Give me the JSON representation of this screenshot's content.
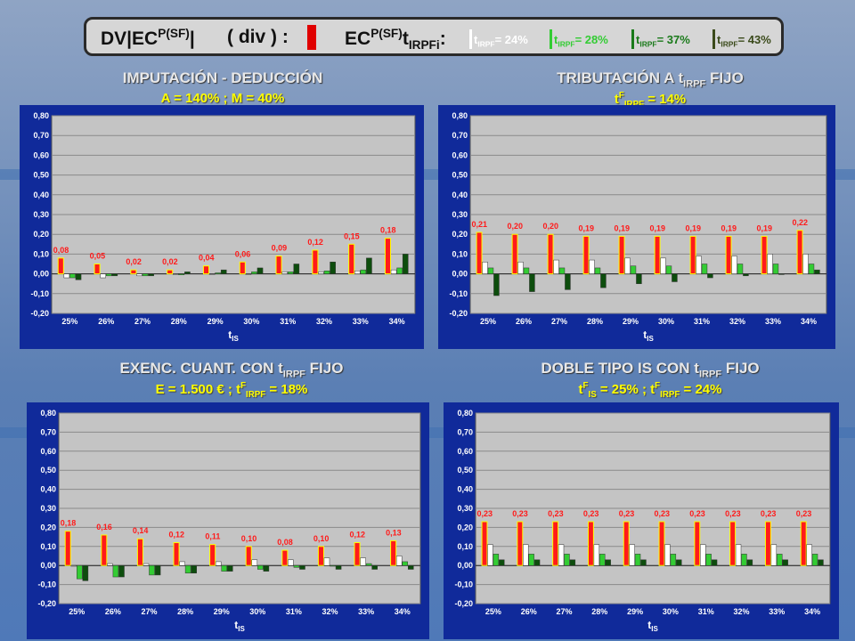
{
  "banner": {
    "left_text": "DV|EC",
    "left_sup": "P(SF)",
    "left_end": "|",
    "div_text": "( div ) :",
    "ec_text": "EC",
    "ec_sup": "P(SF)",
    "ec_t": "t",
    "ec_sub": "IRPFi",
    "ec_colon": ":",
    "legend": [
      {
        "t": "t",
        "sub": "IRPF",
        "val": "= 24%",
        "color": "#ffffff"
      },
      {
        "t": "t",
        "sub": "IRPF",
        "val": "= 28%",
        "color": "#33cc33"
      },
      {
        "t": "t",
        "sub": "IRPF",
        "val": "= 37%",
        "color": "#1a7a1a"
      },
      {
        "t": "t",
        "sub": "IRPF",
        "val": "= 43%",
        "color": "#3a4a1a"
      }
    ]
  },
  "charts": [
    {
      "title": "IMPUTACIÓN - DEDUCCIÓN",
      "subtitle": "A = 140%   ;   M = 40%",
      "xlabel_t": "t",
      "xlabel_sub": "IS",
      "chart_data": {
        "type": "bar",
        "categories": [
          "25%",
          "26%",
          "27%",
          "28%",
          "29%",
          "30%",
          "31%",
          "32%",
          "33%",
          "34%"
        ],
        "ylim": [
          -0.2,
          0.8
        ],
        "yticks": [
          "0,80",
          "0,70",
          "0,60",
          "0,50",
          "0,40",
          "0,30",
          "0,20",
          "0,10",
          "0,00",
          "-0,10",
          "-0,20"
        ],
        "data_labels": [
          "0,08",
          "0,05",
          "0,02",
          "0,02",
          "0,04",
          "0,06",
          "0,09",
          "0,12",
          "0,15",
          "0,18"
        ],
        "series": [
          {
            "values": [
              0.08,
              0.05,
              0.02,
              0.02,
              0.04,
              0.06,
              0.09,
              0.12,
              0.15,
              0.18
            ],
            "color": "#ff1a1a"
          },
          {
            "values": [
              -0.02,
              -0.02,
              -0.01,
              0.0,
              0.0,
              0.0,
              0.01,
              0.01,
              0.015,
              0.02
            ],
            "color": "#ffffff"
          },
          {
            "values": [
              -0.02,
              -0.01,
              -0.01,
              -0.005,
              0.005,
              0.01,
              0.01,
              0.015,
              0.02,
              0.03
            ],
            "color": "#33cc33"
          },
          {
            "values": [
              -0.03,
              -0.01,
              -0.01,
              0.01,
              0.02,
              0.03,
              0.05,
              0.06,
              0.08,
              0.1
            ],
            "color": "#0d4d0d"
          }
        ]
      }
    },
    {
      "title": "TRIBUTACIÓN A t",
      "title_sub": "IRPF",
      "title_end": " FIJO",
      "subtitle": "t",
      "subtitle_sup": "F",
      "subtitle_sub": "IRPF",
      "subtitle_end": " = 14%",
      "xlabel_t": "t",
      "xlabel_sub": "IS",
      "chart_data": {
        "type": "bar",
        "categories": [
          "25%",
          "26%",
          "27%",
          "28%",
          "29%",
          "30%",
          "31%",
          "32%",
          "33%",
          "34%"
        ],
        "ylim": [
          -0.2,
          0.8
        ],
        "yticks": [
          "0,80",
          "0,70",
          "0,60",
          "0,50",
          "0,40",
          "0,30",
          "0,20",
          "0,10",
          "0,00",
          "-0,10",
          "-0,20"
        ],
        "data_labels": [
          "0,21",
          "0,20",
          "0,20",
          "0,19",
          "0,19",
          "0,19",
          "0,19",
          "0,19",
          "0,19",
          "0,22"
        ],
        "series": [
          {
            "values": [
              0.21,
              0.2,
              0.2,
              0.19,
              0.19,
              0.19,
              0.19,
              0.19,
              0.19,
              0.22
            ],
            "color": "#ff1a1a"
          },
          {
            "values": [
              0.06,
              0.06,
              0.07,
              0.07,
              0.08,
              0.08,
              0.09,
              0.09,
              0.1,
              0.1
            ],
            "color": "#ffffff"
          },
          {
            "values": [
              0.03,
              0.03,
              0.03,
              0.03,
              0.04,
              0.04,
              0.05,
              0.05,
              0.05,
              0.05
            ],
            "color": "#33cc33"
          },
          {
            "values": [
              -0.11,
              -0.09,
              -0.08,
              -0.07,
              -0.05,
              -0.04,
              -0.02,
              -0.01,
              0.0,
              0.02
            ],
            "color": "#0d4d0d"
          }
        ]
      }
    },
    {
      "title": "EXENC. CUANT. CON t",
      "title_sub": "IRPF",
      "title_end": " FIJO",
      "subtitle": "E = 1.500 €   ;   t",
      "subtitle_sup": "F",
      "subtitle_sub": "IRPF",
      "subtitle_end": " = 18%",
      "xlabel_t": "t",
      "xlabel_sub": "IS",
      "chart_data": {
        "type": "bar",
        "categories": [
          "25%",
          "26%",
          "27%",
          "28%",
          "29%",
          "30%",
          "31%",
          "32%",
          "33%",
          "34%"
        ],
        "ylim": [
          -0.2,
          0.8
        ],
        "yticks": [
          "0,80",
          "0,70",
          "0,60",
          "0,50",
          "0,40",
          "0,30",
          "0,20",
          "0,10",
          "0,00",
          "-0,10",
          "-0,20"
        ],
        "data_labels": [
          "0,18",
          "0,16",
          "0,14",
          "0,12",
          "0,11",
          "0,10",
          "0,08",
          "0,10",
          "0,12",
          "0,13"
        ],
        "series": [
          {
            "values": [
              0.18,
              0.16,
              0.14,
              0.12,
              0.11,
              0.1,
              0.08,
              0.1,
              0.12,
              0.13
            ],
            "color": "#ff1a1a"
          },
          {
            "values": [
              0.0,
              0.01,
              0.01,
              0.02,
              0.02,
              0.03,
              0.03,
              0.04,
              0.04,
              0.05
            ],
            "color": "#ffffff"
          },
          {
            "values": [
              -0.07,
              -0.06,
              -0.05,
              -0.04,
              -0.03,
              -0.02,
              -0.01,
              0.0,
              0.01,
              0.02
            ],
            "color": "#33cc33"
          },
          {
            "values": [
              -0.08,
              -0.06,
              -0.05,
              -0.04,
              -0.03,
              -0.03,
              -0.02,
              -0.02,
              -0.02,
              -0.02
            ],
            "color": "#0d4d0d"
          }
        ]
      }
    },
    {
      "title": "DOBLE TIPO IS CON t",
      "title_sub": "IRPF",
      "title_end": " FIJO",
      "subtitle": "t",
      "subtitle_sup": "F",
      "subtitle_sub": "IS",
      "subtitle_mid": " = 25% ;   t",
      "subtitle_sup2": "F",
      "subtitle_sub2": "IRPF",
      "subtitle_end": " = 24%",
      "xlabel_t": "t",
      "xlabel_sub": "IS",
      "chart_data": {
        "type": "bar",
        "categories": [
          "25%",
          "26%",
          "27%",
          "28%",
          "29%",
          "30%",
          "31%",
          "32%",
          "33%",
          "34%"
        ],
        "ylim": [
          -0.2,
          0.8
        ],
        "yticks": [
          "0,80",
          "0,70",
          "0,60",
          "0,50",
          "0,40",
          "0,30",
          "0,20",
          "0,10",
          "0,00",
          "-0,10",
          "-0,20"
        ],
        "data_labels": [
          "0,23",
          "0,23",
          "0,23",
          "0,23",
          "0,23",
          "0,23",
          "0,23",
          "0,23",
          "0,23",
          "0,23"
        ],
        "series": [
          {
            "values": [
              0.23,
              0.23,
              0.23,
              0.23,
              0.23,
              0.23,
              0.23,
              0.23,
              0.23,
              0.23
            ],
            "color": "#ff1a1a"
          },
          {
            "values": [
              0.11,
              0.11,
              0.11,
              0.11,
              0.11,
              0.11,
              0.11,
              0.11,
              0.11,
              0.11
            ],
            "color": "#ffffff"
          },
          {
            "values": [
              0.06,
              0.06,
              0.06,
              0.06,
              0.06,
              0.06,
              0.06,
              0.06,
              0.06,
              0.06
            ],
            "color": "#33cc33"
          },
          {
            "values": [
              0.03,
              0.03,
              0.03,
              0.03,
              0.03,
              0.03,
              0.03,
              0.03,
              0.03,
              0.03
            ],
            "color": "#0d4d0d"
          }
        ]
      }
    }
  ]
}
